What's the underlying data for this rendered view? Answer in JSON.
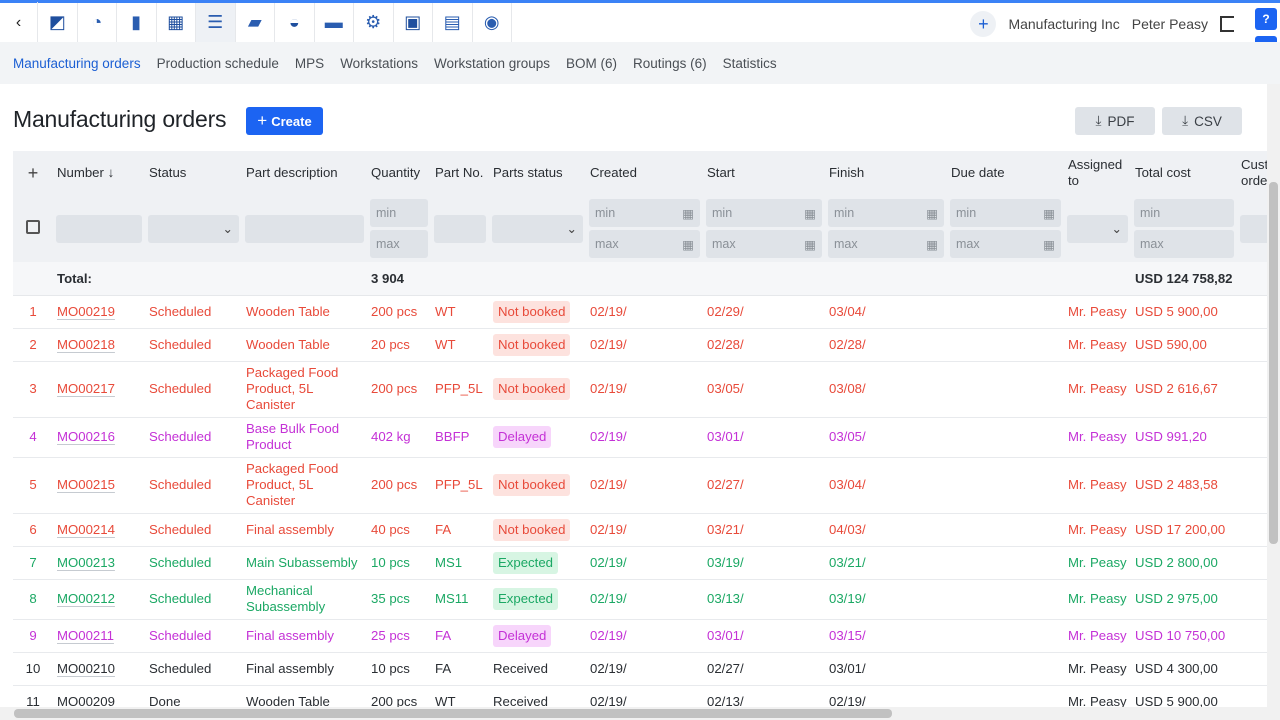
{
  "topbar": {
    "nav_icons": [
      "sidebar-toggle-icon",
      "dashboard-gauge-icon",
      "reports-bars-icon",
      "calendar-icon",
      "production-planning-icon",
      "book-icon",
      "basket-icon",
      "folder-icon",
      "gear-icon",
      "presentation-icon",
      "gift-icon",
      "lightbulb-icon"
    ],
    "company": "Manufacturing Inc",
    "user": "Peter Peasy"
  },
  "subnav": {
    "tabs": [
      "Manufacturing orders",
      "Production schedule",
      "MPS",
      "Workstations",
      "Workstation groups",
      "BOM (6)",
      "Routings (6)",
      "Statistics"
    ]
  },
  "page": {
    "title": "Manufacturing orders",
    "create_label": "Create",
    "pdf_label": "PDF",
    "csv_label": "CSV"
  },
  "table": {
    "headers": [
      "Number",
      "Status",
      "Part description",
      "Quantity",
      "Part No.",
      "Parts status",
      "Created",
      "Start",
      "Finish",
      "Due date",
      "Assigned to",
      "Total cost",
      "Customer order"
    ],
    "sort_indicator": "↓",
    "filter_placeholders": {
      "min": "min",
      "max": "max"
    },
    "total": {
      "label": "Total:",
      "quantity": "3 904",
      "cost": "USD 124 758,82"
    },
    "rows": [
      {
        "idx": "1",
        "number": "MO00219",
        "status": "Scheduled",
        "desc": "Wooden Table",
        "qty": "200 pcs",
        "part": "WT",
        "parts_status": "Not booked",
        "created": "02/19/",
        "start": "02/29/",
        "finish": "03/04/",
        "due": "",
        "assigned": "Mr. Peasy",
        "cost": "USD 5 900,00",
        "color": "red",
        "badge": true
      },
      {
        "idx": "2",
        "number": "MO00218",
        "status": "Scheduled",
        "desc": "Wooden Table",
        "qty": "20 pcs",
        "part": "WT",
        "parts_status": "Not booked",
        "created": "02/19/",
        "start": "02/28/",
        "finish": "02/28/",
        "due": "",
        "assigned": "Mr. Peasy",
        "cost": "USD 590,00",
        "color": "red",
        "badge": true
      },
      {
        "idx": "3",
        "number": "MO00217",
        "status": "Scheduled",
        "desc": "Packaged Food Product, 5L Canister",
        "qty": "200 pcs",
        "part": "PFP_5L",
        "parts_status": "Not booked",
        "created": "02/19/",
        "start": "03/05/",
        "finish": "03/08/",
        "due": "",
        "assigned": "Mr. Peasy",
        "cost": "USD 2 616,67",
        "color": "red",
        "badge": true
      },
      {
        "idx": "4",
        "number": "MO00216",
        "status": "Scheduled",
        "desc": "Base Bulk Food Product",
        "qty": "402 kg",
        "part": "BBFP",
        "parts_status": "Delayed",
        "created": "02/19/",
        "start": "03/01/",
        "finish": "03/05/",
        "due": "",
        "assigned": "Mr. Peasy",
        "cost": "USD 991,20",
        "color": "purple",
        "badge": true
      },
      {
        "idx": "5",
        "number": "MO00215",
        "status": "Scheduled",
        "desc": "Packaged Food Product, 5L Canister",
        "qty": "200 pcs",
        "part": "PFP_5L",
        "parts_status": "Not booked",
        "created": "02/19/",
        "start": "02/27/",
        "finish": "03/04/",
        "due": "",
        "assigned": "Mr. Peasy",
        "cost": "USD 2 483,58",
        "color": "red",
        "badge": true
      },
      {
        "idx": "6",
        "number": "MO00214",
        "status": "Scheduled",
        "desc": "Final assembly",
        "qty": "40 pcs",
        "part": "FA",
        "parts_status": "Not booked",
        "created": "02/19/",
        "start": "03/21/",
        "finish": "04/03/",
        "due": "",
        "assigned": "Mr. Peasy",
        "cost": "USD 17 200,00",
        "color": "red",
        "badge": true
      },
      {
        "idx": "7",
        "number": "MO00213",
        "status": "Scheduled",
        "desc": "Main Subassembly",
        "qty": "10 pcs",
        "part": "MS1",
        "parts_status": "Expected",
        "created": "02/19/",
        "start": "03/19/",
        "finish": "03/21/",
        "due": "",
        "assigned": "Mr. Peasy",
        "cost": "USD 2 800,00",
        "color": "green",
        "badge": true
      },
      {
        "idx": "8",
        "number": "MO00212",
        "status": "Scheduled",
        "desc": "Mechanical Subassembly",
        "qty": "35 pcs",
        "part": "MS11",
        "parts_status": "Expected",
        "created": "02/19/",
        "start": "03/13/",
        "finish": "03/19/",
        "due": "",
        "assigned": "Mr. Peasy",
        "cost": "USD 2 975,00",
        "color": "green",
        "badge": true
      },
      {
        "idx": "9",
        "number": "MO00211",
        "status": "Scheduled",
        "desc": "Final assembly",
        "qty": "25 pcs",
        "part": "FA",
        "parts_status": "Delayed",
        "created": "02/19/",
        "start": "03/01/",
        "finish": "03/15/",
        "due": "",
        "assigned": "Mr. Peasy",
        "cost": "USD 10 750,00",
        "color": "purple",
        "badge": true
      },
      {
        "idx": "10",
        "number": "MO00210",
        "status": "Scheduled",
        "desc": "Final assembly",
        "qty": "10 pcs",
        "part": "FA",
        "parts_status": "Received",
        "created": "02/19/",
        "start": "02/27/",
        "finish": "03/01/",
        "due": "",
        "assigned": "Mr. Peasy",
        "cost": "USD 4 300,00",
        "color": "gray",
        "badge": false
      },
      {
        "idx": "11",
        "number": "MO00209",
        "status": "Done",
        "desc": "Wooden Table",
        "qty": "200 pcs",
        "part": "WT",
        "parts_status": "Received",
        "created": "02/19/",
        "start": "02/13/",
        "finish": "02/19/",
        "due": "",
        "assigned": "Mr. Peasy",
        "cost": "USD 5 900,00",
        "color": "gray",
        "badge": false
      }
    ]
  },
  "colors": {
    "accent": "#1c64f2",
    "red": "#e84a3a",
    "purple": "#c431d6",
    "green": "#1ba864"
  }
}
